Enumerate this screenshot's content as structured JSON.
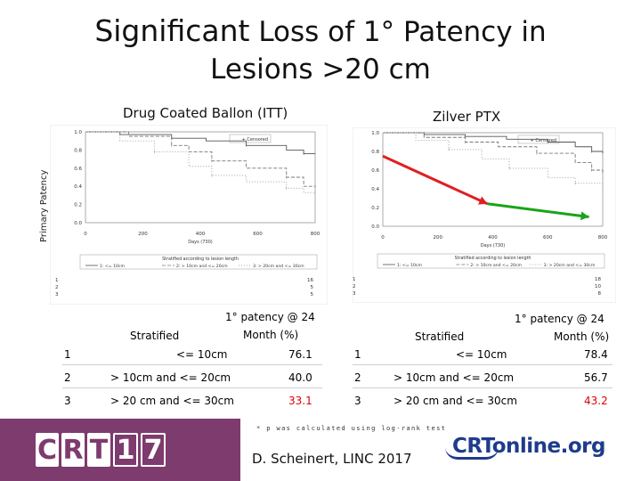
{
  "title": {
    "line1_prefix": "Significant",
    "line1_rest": "Loss of 1° Patency in",
    "line2": "Lesions >20 cm"
  },
  "y_axis_label": "Primary Patency",
  "footnote": "* p was calculated using log-rank test",
  "credit": "D. Scheinert, LINC 2017",
  "logos": {
    "left_letters": [
      "C",
      "R",
      "T",
      "1",
      "7"
    ],
    "right": "CRTonline.org"
  },
  "chart_data": [
    {
      "type": "line",
      "title": "Drug Coated Ballon (ITT)",
      "legend": "+ Censored",
      "legend_position": "top-right",
      "xlabel": "Days (730)",
      "xlim": [
        0,
        800
      ],
      "ylim": [
        0,
        1
      ],
      "x_ticks": [
        "0",
        "200",
        "400",
        "600",
        "800"
      ],
      "y_ticks": [
        "0.0",
        "0.2",
        "0.4",
        "0.6",
        "0.8",
        "1.0"
      ],
      "strata_title": "Stratified according to lesion length",
      "series": [
        {
          "name": "1: <= 10cm",
          "values": [
            [
              0,
              1.0
            ],
            [
              120,
              0.97
            ],
            [
              300,
              0.93
            ],
            [
              420,
              0.9
            ],
            [
              560,
              0.85
            ],
            [
              700,
              0.8
            ],
            [
              760,
              0.76
            ],
            [
              800,
              0.76
            ]
          ]
        },
        {
          "name": "2: > 10cm and <= 20cm",
          "values": [
            [
              0,
              1.0
            ],
            [
              150,
              0.95
            ],
            [
              300,
              0.85
            ],
            [
              360,
              0.78
            ],
            [
              440,
              0.68
            ],
            [
              560,
              0.6
            ],
            [
              700,
              0.5
            ],
            [
              760,
              0.4
            ],
            [
              800,
              0.4
            ]
          ]
        },
        {
          "name": "3: > 20cm and <= 30cm",
          "values": [
            [
              0,
              1.0
            ],
            [
              120,
              0.9
            ],
            [
              240,
              0.78
            ],
            [
              360,
              0.62
            ],
            [
              440,
              0.52
            ],
            [
              560,
              0.45
            ],
            [
              700,
              0.38
            ],
            [
              760,
              0.33
            ],
            [
              800,
              0.33
            ]
          ]
        }
      ],
      "risk_rows": [
        "1",
        "2",
        "3"
      ],
      "risk_last": [
        "16",
        "5",
        "5"
      ]
    },
    {
      "type": "line",
      "title": "Zilver PTX",
      "legend": "+ Censored",
      "legend_position": "top-right",
      "xlabel": "Days (730)",
      "xlim": [
        0,
        800
      ],
      "ylim": [
        0,
        1
      ],
      "x_ticks": [
        "0",
        "200",
        "400",
        "600",
        "800"
      ],
      "y_ticks": [
        "0.0",
        "0.2",
        "0.4",
        "0.6",
        "0.8",
        "1.0"
      ],
      "strata_title": "Stratified according to lesion length",
      "series": [
        {
          "name": "1: <= 10cm",
          "values": [
            [
              0,
              1.0
            ],
            [
              150,
              0.98
            ],
            [
              300,
              0.96
            ],
            [
              450,
              0.93
            ],
            [
              600,
              0.9
            ],
            [
              700,
              0.85
            ],
            [
              760,
              0.8
            ],
            [
              800,
              0.78
            ]
          ]
        },
        {
          "name": "2: > 10cm and <= 20cm",
          "values": [
            [
              0,
              1.0
            ],
            [
              150,
              0.95
            ],
            [
              300,
              0.9
            ],
            [
              420,
              0.85
            ],
            [
              560,
              0.78
            ],
            [
              700,
              0.68
            ],
            [
              760,
              0.6
            ],
            [
              800,
              0.57
            ]
          ]
        },
        {
          "name": "3: > 20cm and <= 30cm",
          "values": [
            [
              0,
              1.0
            ],
            [
              120,
              0.92
            ],
            [
              240,
              0.82
            ],
            [
              360,
              0.72
            ],
            [
              460,
              0.62
            ],
            [
              600,
              0.52
            ],
            [
              700,
              0.46
            ],
            [
              800,
              0.43
            ]
          ]
        }
      ],
      "risk_rows": [
        "1",
        "2",
        "3"
      ],
      "risk_last": [
        "18",
        "10",
        "8"
      ],
      "annotation_arrows": [
        {
          "color": "#e02020",
          "from": [
            0,
            0.75
          ],
          "to": [
            380,
            0.24
          ]
        },
        {
          "color": "#1aa31a",
          "from": [
            380,
            0.24
          ],
          "to": [
            750,
            0.1
          ]
        }
      ]
    }
  ],
  "tables": [
    {
      "header_stratified": "Stratified",
      "header_patency_1": "1° patency @ 24",
      "header_patency_2": "Month (%)",
      "rows": [
        {
          "num": "1",
          "range": "<= 10cm",
          "value": "76.1"
        },
        {
          "num": "2",
          "range": "> 10cm and <= 20cm",
          "value": "40.0"
        },
        {
          "num": "3",
          "range": "> 20 cm and <= 30cm",
          "value": "33.1"
        }
      ]
    },
    {
      "header_stratified": "Stratified",
      "header_patency_1": "1° patency @ 24",
      "header_patency_2": "Month (%)",
      "rows": [
        {
          "num": "1",
          "range": "<= 10cm",
          "value": "78.4"
        },
        {
          "num": "2",
          "range": "> 10cm and <= 20cm",
          "value": "56.7"
        },
        {
          "num": "3",
          "range": "> 20 cm and <= 30cm",
          "value": "43.2"
        }
      ]
    }
  ],
  "colors": {
    "highlight": "#e00000",
    "footer": "#7e3b6e",
    "online_blue": "#1f3b8c"
  }
}
